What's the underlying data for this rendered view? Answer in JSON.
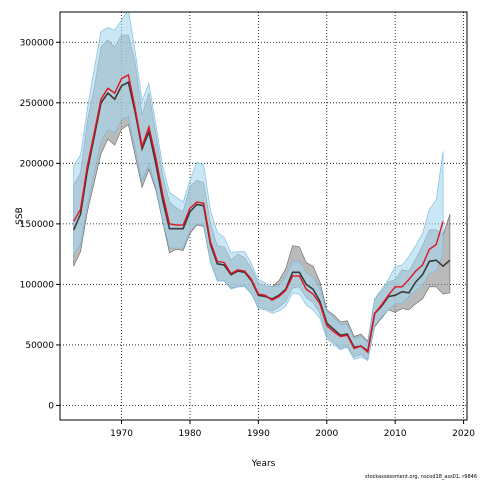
{
  "chart_data": {
    "type": "line",
    "title": "",
    "xlabel": "Years",
    "ylabel": "SSB",
    "xlim": [
      1961,
      2020.5
    ],
    "ylim": [
      -12000,
      325000
    ],
    "xticks": [
      1970,
      1980,
      1990,
      2000,
      2010,
      2020
    ],
    "yticks": [
      0,
      50000,
      100000,
      150000,
      200000,
      250000,
      300000
    ],
    "grid": true,
    "grid_style": "dotted",
    "footnote": "stockassessment.org, nscod18_ass01, r9846",
    "colors": {
      "band_blue": "#a6d7ee",
      "band_blue_edge": "#74b8dd",
      "band_grey": "#8c8c8c",
      "band_grey_edge": "#666666",
      "line_red": "#e3121f",
      "line_dark": "#3a3a3a"
    },
    "series": [
      {
        "x": [
          1963,
          1964,
          1965,
          1966,
          1967,
          1968,
          1969,
          1970,
          1971,
          1972,
          1973,
          1974,
          1975,
          1976,
          1977,
          1978,
          1979,
          1980,
          1981,
          1982,
          1983,
          1984,
          1985,
          1986,
          1987,
          1988,
          1989,
          1990,
          1991,
          1992,
          1993,
          1994,
          1995,
          1996,
          1997,
          1998,
          1999,
          2000,
          2001,
          2002,
          2003,
          2004,
          2005,
          2006,
          2007,
          2008,
          2009,
          2010,
          2011,
          2012,
          2013,
          2014,
          2015,
          2016,
          2017,
          2018
        ],
        "estimate": [
          145000,
          158000,
          194000,
          222000,
          250000,
          258000,
          253000,
          264000,
          267000,
          242000,
          212000,
          226000,
          200000,
          170000,
          146000,
          146000,
          146000,
          160000,
          166000,
          165000,
          133000,
          117000,
          116000,
          108000,
          111000,
          110000,
          103000,
          91000,
          90000,
          88000,
          91000,
          96000,
          110000,
          110000,
          100000,
          96000,
          86000,
          68000,
          63000,
          58000,
          59000,
          48000,
          49000,
          45000,
          76000,
          82000,
          90000,
          91000,
          94000,
          93000,
          102000,
          108000,
          119000,
          120000,
          115000,
          120000
        ],
        "estimate_lower": [
          115000,
          127000,
          160000,
          184000,
          208000,
          220000,
          215000,
          228000,
          232000,
          206000,
          180000,
          195000,
          178000,
          152000,
          126000,
          129000,
          128000,
          142000,
          149000,
          148000,
          118000,
          103000,
          103000,
          97000,
          98000,
          99000,
          92000,
          81000,
          80000,
          78000,
          81000,
          86000,
          97000,
          98000,
          89000,
          85000,
          76000,
          57000,
          52000,
          47000,
          49000,
          40000,
          42000,
          38000,
          65000,
          72000,
          79000,
          77000,
          80000,
          79000,
          84000,
          88000,
          98000,
          98000,
          92000,
          93000
        ],
        "estimate_upper": [
          182000,
          192000,
          235000,
          262000,
          296000,
          302000,
          296000,
          306000,
          306000,
          283000,
          240000,
          258000,
          225000,
          190000,
          168000,
          163000,
          160000,
          181000,
          186000,
          184000,
          150000,
          132000,
          131000,
          120000,
          125000,
          122000,
          113000,
          101000,
          99000,
          98000,
          103000,
          113000,
          132000,
          131000,
          118000,
          115000,
          102000,
          79000,
          75000,
          69000,
          70000,
          57000,
          59000,
          53000,
          88000,
          94000,
          102000,
          104000,
          112000,
          111000,
          121000,
          132000,
          145000,
          145000,
          141000,
          158000
        ]
      },
      {
        "x": [
          1963,
          1964,
          1965,
          1966,
          1967,
          1968,
          1969,
          1970,
          1971,
          1972,
          1973,
          1974,
          1975,
          1976,
          1977,
          1978,
          1979,
          1980,
          1981,
          1982,
          1983,
          1984,
          1985,
          1986,
          1987,
          1988,
          1989,
          1990,
          1991,
          1992,
          1993,
          1994,
          1995,
          1996,
          1997,
          1998,
          1999,
          2000,
          2001,
          2002,
          2003,
          2004,
          2005,
          2006,
          2007,
          2008,
          2009,
          2010,
          2011,
          2012,
          2013,
          2014,
          2015,
          2016,
          2017
        ],
        "estimate": [
          152000,
          162000,
          198000,
          225000,
          253000,
          262000,
          258000,
          270000,
          273000,
          245000,
          214000,
          230000,
          205000,
          175000,
          150000,
          149000,
          149000,
          163000,
          168000,
          167000,
          135000,
          119000,
          118000,
          109000,
          112000,
          111000,
          104000,
          92000,
          91000,
          87000,
          90000,
          95000,
          107000,
          107000,
          96000,
          92000,
          84000,
          66000,
          61000,
          57000,
          58000,
          47000,
          49000,
          44000,
          76000,
          83000,
          91000,
          98000,
          98000,
          104000,
          111000,
          116000,
          129000,
          133000,
          152000
        ],
        "estimate_lower": [
          125000,
          133000,
          166000,
          192000,
          218000,
          228000,
          225000,
          236000,
          239000,
          212000,
          185000,
          200000,
          180000,
          153000,
          130000,
          130000,
          130000,
          144000,
          150000,
          149000,
          118000,
          103000,
          103000,
          96000,
          98000,
          98000,
          92000,
          80000,
          79000,
          76000,
          78000,
          82000,
          93000,
          92000,
          83000,
          79000,
          72000,
          55000,
          50000,
          46000,
          48000,
          38000,
          40000,
          37000,
          66000,
          73000,
          79000,
          84000,
          84000,
          90000,
          95000,
          99000,
          109000,
          111000,
          126000
        ],
        "estimate_upper": [
          198000,
          207000,
          245000,
          278000,
          309000,
          312000,
          310000,
          318000,
          327000,
          292000,
          252000,
          266000,
          233000,
          198000,
          176000,
          172000,
          168000,
          186000,
          201000,
          199000,
          161000,
          143000,
          139000,
          126000,
          127000,
          127000,
          117000,
          104000,
          101000,
          98000,
          99000,
          106000,
          119000,
          119000,
          110000,
          106000,
          96000,
          78000,
          73000,
          67000,
          67000,
          55000,
          57000,
          52000,
          88000,
          96000,
          104000,
          115000,
          116000,
          123000,
          132000,
          142000,
          162000,
          170000,
          210000
        ]
      }
    ]
  }
}
